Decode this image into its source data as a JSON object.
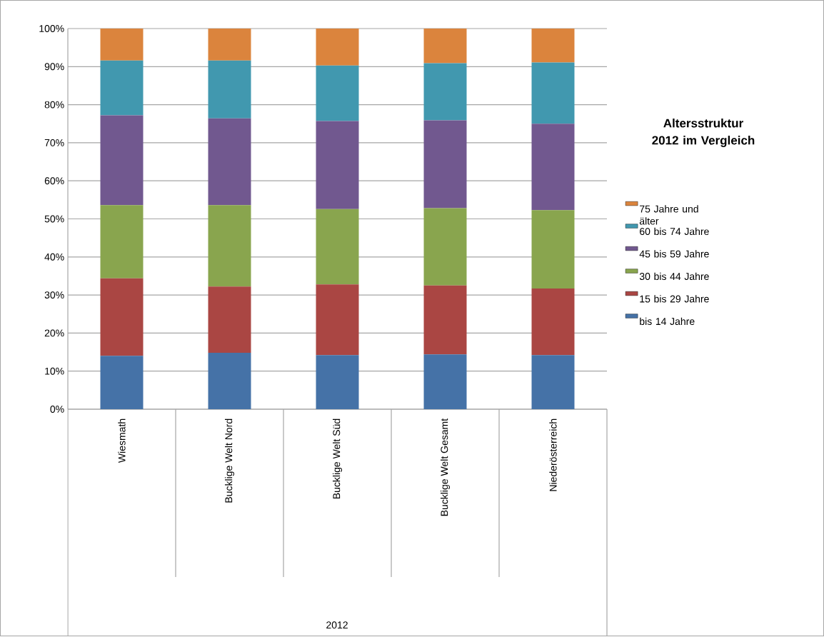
{
  "chart_data": {
    "type": "bar",
    "stacked": true,
    "title": "Altersstruktur 2012 im Vergleich",
    "annotations": [
      "2012"
    ],
    "categories": [
      "Wiesmath",
      "Bucklige Welt Nord",
      "Bucklige Welt Süd",
      "Bucklige Welt Gesamt",
      "Niederösterreich"
    ],
    "series": [
      {
        "name": "bis 14 Jahre",
        "color": "#4572a7",
        "values": [
          14.0,
          14.8,
          14.2,
          14.4,
          14.2
        ]
      },
      {
        "name": "15 bis 29 Jahre",
        "color": "#aa4643",
        "values": [
          20.4,
          17.4,
          18.6,
          18.1,
          17.5
        ]
      },
      {
        "name": "30 bis 44 Jahre",
        "color": "#89a54e",
        "values": [
          19.2,
          21.4,
          19.8,
          20.3,
          20.6
        ]
      },
      {
        "name": "45 bis 59 Jahre",
        "color": "#71588f",
        "values": [
          23.6,
          22.8,
          23.1,
          23.1,
          22.7
        ]
      },
      {
        "name": "60 bis 74 Jahre",
        "color": "#4198af",
        "values": [
          14.4,
          15.2,
          14.6,
          15.0,
          16.1
        ]
      },
      {
        "name": "75 Jahre und älter",
        "color": "#db843d",
        "values": [
          8.4,
          8.4,
          9.7,
          9.1,
          8.9
        ]
      }
    ],
    "ylim": [
      0,
      100
    ],
    "yticks": [
      {
        "value": 0,
        "label": "0%"
      },
      {
        "value": 10,
        "label": "10%"
      },
      {
        "value": 20,
        "label": "20%"
      },
      {
        "value": 30,
        "label": "30%"
      },
      {
        "value": 40,
        "label": "40%"
      },
      {
        "value": 50,
        "label": "50%"
      },
      {
        "value": 60,
        "label": "60%"
      },
      {
        "value": 70,
        "label": "70%"
      },
      {
        "value": 80,
        "label": "80%"
      },
      {
        "value": 90,
        "label": "90%"
      },
      {
        "value": 100,
        "label": "100%"
      }
    ],
    "grid": "y",
    "legend": "right"
  }
}
